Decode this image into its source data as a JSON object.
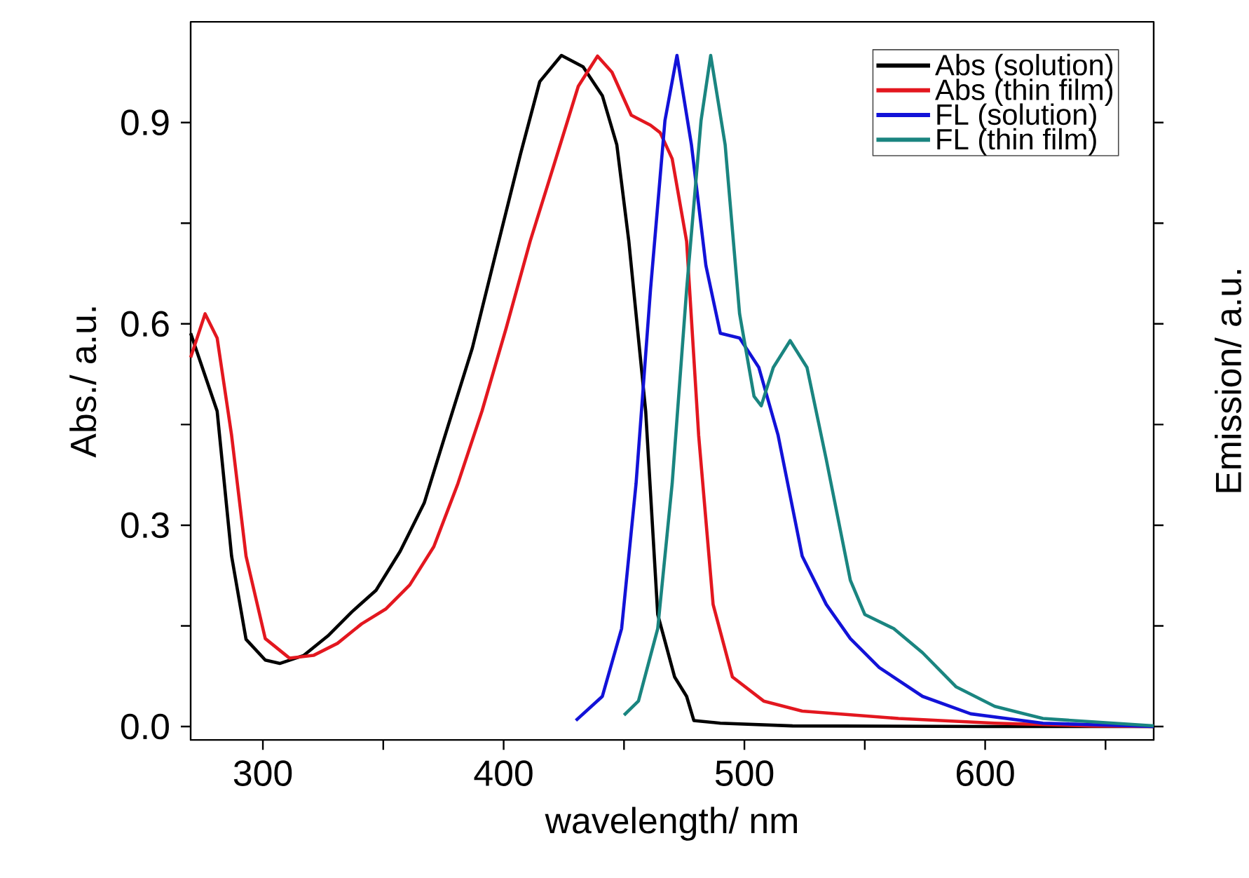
{
  "chart_data": {
    "type": "line",
    "xlabel": "wavelength/ nm",
    "ylabel": "Abs./ a.u.",
    "y2label": "Emission/ a.u.",
    "xlim": [
      270,
      670
    ],
    "ylim": [
      -0.02,
      1.05
    ],
    "xticks": [
      300,
      {
        "value": 350,
        "label": null
      },
      400,
      {
        "value": 450,
        "label": null
      },
      500,
      {
        "value": 550,
        "label": null
      },
      600,
      {
        "value": 650,
        "label": null
      }
    ],
    "yticks": [
      {
        "value": 0,
        "label": "0.0"
      },
      {
        "value": 0.15,
        "label": null
      },
      {
        "value": 0.3,
        "label": "0.3"
      },
      {
        "value": 0.45,
        "label": null
      },
      {
        "value": 0.6,
        "label": "0.6"
      },
      {
        "value": 0.75,
        "label": null
      },
      {
        "value": 0.9,
        "label": "0.9"
      }
    ],
    "grid": false,
    "legend": "top right",
    "marker": "none",
    "line_style": "solid",
    "series": [
      {
        "name": "Abs (solution)",
        "color": "#000000",
        "x": [
          270,
          281,
          287,
          293,
          301,
          307,
          317,
          327,
          337,
          347,
          357,
          367,
          377,
          387,
          397,
          407,
          415,
          424,
          433,
          441,
          447,
          452,
          459,
          464,
          471,
          476,
          479,
          490,
          520,
          600,
          670
        ],
        "values": [
          0.586,
          0.47,
          0.254,
          0.13,
          0.099,
          0.094,
          0.106,
          0.135,
          0.171,
          0.203,
          0.261,
          0.333,
          0.449,
          0.564,
          0.709,
          0.853,
          0.961,
          1.0,
          0.983,
          0.94,
          0.867,
          0.723,
          0.47,
          0.167,
          0.074,
          0.045,
          0.009,
          0.005,
          0.001,
          0.0,
          0.0
        ]
      },
      {
        "name": "Abs (thin film)",
        "color": "#e3171f",
        "x": [
          270,
          276,
          281,
          287,
          293,
          301,
          311,
          321,
          331,
          341,
          351,
          361,
          371,
          381,
          391,
          401,
          411,
          421,
          431,
          439,
          445,
          453,
          461,
          465,
          470,
          476,
          481,
          487,
          495,
          508,
          524,
          564,
          604,
          644,
          670
        ],
        "values": [
          0.55,
          0.615,
          0.579,
          0.434,
          0.254,
          0.131,
          0.102,
          0.106,
          0.124,
          0.153,
          0.175,
          0.211,
          0.268,
          0.362,
          0.47,
          0.593,
          0.723,
          0.838,
          0.954,
          0.999,
          0.975,
          0.911,
          0.896,
          0.885,
          0.846,
          0.723,
          0.434,
          0.182,
          0.074,
          0.038,
          0.023,
          0.012,
          0.005,
          0.001,
          0.0
        ]
      },
      {
        "name": "FL (solution)",
        "color": "#1212d8",
        "x": [
          430,
          441,
          449,
          455,
          461,
          467,
          472,
          478,
          484,
          490,
          498,
          506,
          514,
          524,
          534,
          544,
          556,
          574,
          594,
          624,
          670
        ],
        "values": [
          0.009,
          0.045,
          0.146,
          0.362,
          0.651,
          0.903,
          1.0,
          0.867,
          0.687,
          0.586,
          0.579,
          0.535,
          0.434,
          0.254,
          0.182,
          0.131,
          0.088,
          0.045,
          0.019,
          0.005,
          0.0
        ]
      },
      {
        "name": "FL (thin film)",
        "color": "#1a8580",
        "x": [
          450,
          456,
          464,
          470,
          476,
          482,
          486,
          492,
          498,
          504,
          507,
          512,
          519,
          526,
          534,
          544,
          550,
          562,
          574,
          588,
          604,
          624,
          670
        ],
        "values": [
          0.017,
          0.038,
          0.146,
          0.362,
          0.651,
          0.903,
          1.0,
          0.867,
          0.615,
          0.492,
          0.478,
          0.535,
          0.575,
          0.535,
          0.398,
          0.218,
          0.167,
          0.146,
          0.11,
          0.059,
          0.03,
          0.012,
          0.001
        ]
      }
    ]
  }
}
